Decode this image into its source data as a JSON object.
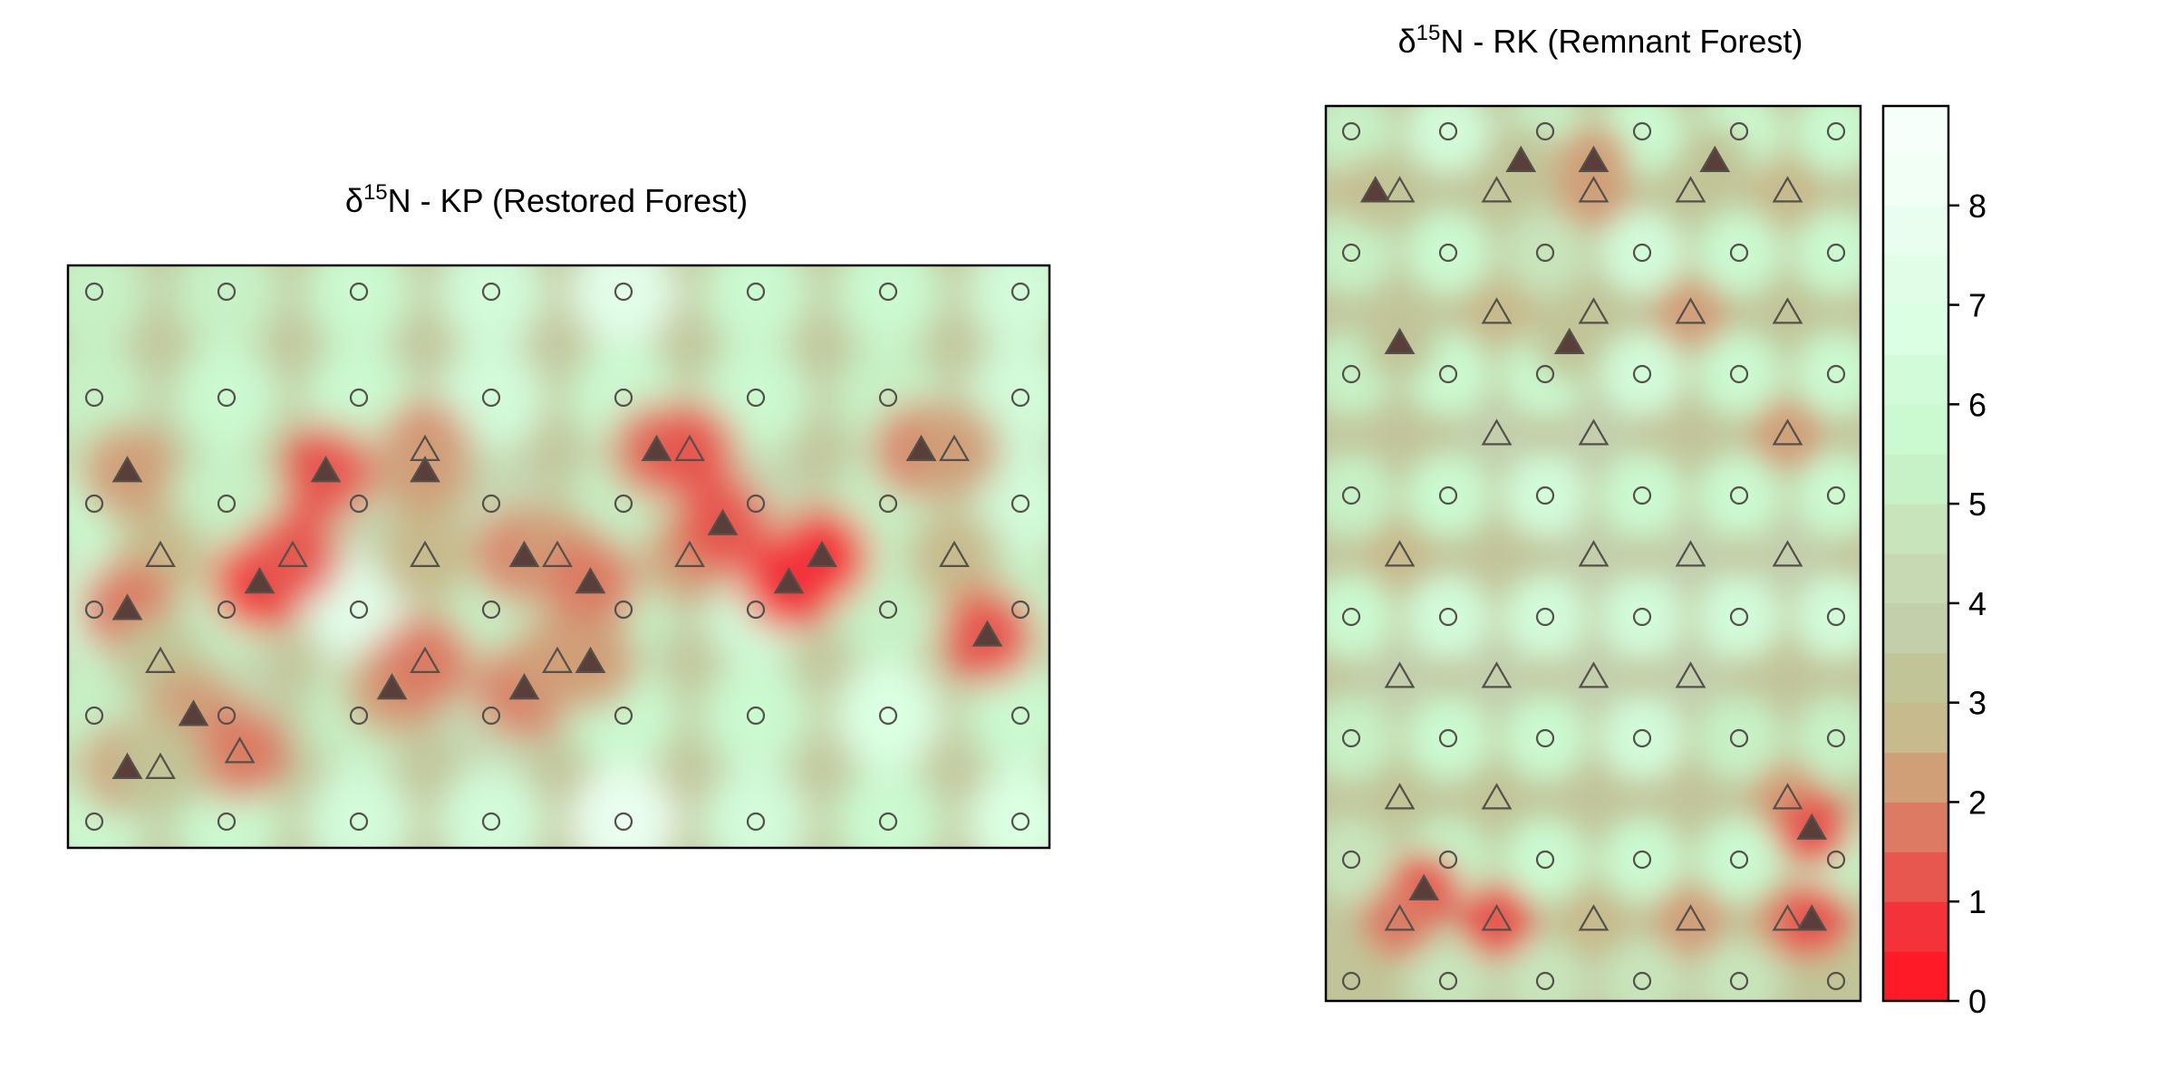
{
  "chart_data": [
    {
      "type": "heatmap",
      "title": {
        "delta": "δ",
        "sup": "15",
        "rest": "N - KP (Restored Forest)"
      },
      "xlabel": "",
      "ylabel": "",
      "grid": false,
      "cols": 8,
      "rows": 6,
      "circles": [
        {
          "x": 0,
          "y": 0,
          "v": 5.1
        },
        {
          "x": 1,
          "y": 0,
          "v": 5.1
        },
        {
          "x": 2,
          "y": 0,
          "v": 5.6
        },
        {
          "x": 3,
          "y": 0,
          "v": 6.2
        },
        {
          "x": 4,
          "y": 0,
          "v": 7.2
        },
        {
          "x": 5,
          "y": 0,
          "v": 5.6
        },
        {
          "x": 6,
          "y": 0,
          "v": 5.6
        },
        {
          "x": 7,
          "y": 0,
          "v": 6.2
        },
        {
          "x": 0,
          "y": 1,
          "v": 5.1
        },
        {
          "x": 1,
          "y": 1,
          "v": 5.6
        },
        {
          "x": 2,
          "y": 1,
          "v": 5.6
        },
        {
          "x": 3,
          "y": 1,
          "v": 6.2
        },
        {
          "x": 4,
          "y": 1,
          "v": 5.6
        },
        {
          "x": 5,
          "y": 1,
          "v": 5.6
        },
        {
          "x": 6,
          "y": 1,
          "v": 5.1
        },
        {
          "x": 7,
          "y": 1,
          "v": 6.2
        },
        {
          "x": 0,
          "y": 2,
          "v": 5.6
        },
        {
          "x": 1,
          "y": 2,
          "v": 5.1
        },
        {
          "x": 2,
          "y": 2,
          "v": 4.2
        },
        {
          "x": 3,
          "y": 2,
          "v": 4.2
        },
        {
          "x": 4,
          "y": 2,
          "v": 5.1
        },
        {
          "x": 5,
          "y": 2,
          "v": 4.4
        },
        {
          "x": 6,
          "y": 2,
          "v": 5.1
        },
        {
          "x": 7,
          "y": 2,
          "v": 6.2
        },
        {
          "x": 0,
          "y": 3,
          "v": 6.2
        },
        {
          "x": 1,
          "y": 3,
          "v": 5.1
        },
        {
          "x": 2,
          "y": 3,
          "v": 7.0
        },
        {
          "x": 3,
          "y": 3,
          "v": 5.1
        },
        {
          "x": 4,
          "y": 3,
          "v": 5.1
        },
        {
          "x": 5,
          "y": 3,
          "v": 6.2
        },
        {
          "x": 6,
          "y": 3,
          "v": 5.1
        },
        {
          "x": 7,
          "y": 3,
          "v": 5.1
        },
        {
          "x": 0,
          "y": 4,
          "v": 5.1
        },
        {
          "x": 1,
          "y": 4,
          "v": 4.4
        },
        {
          "x": 2,
          "y": 4,
          "v": 5.1
        },
        {
          "x": 3,
          "y": 4,
          "v": 4.4
        },
        {
          "x": 4,
          "y": 4,
          "v": 5.6
        },
        {
          "x": 5,
          "y": 4,
          "v": 5.6
        },
        {
          "x": 6,
          "y": 4,
          "v": 6.6
        },
        {
          "x": 7,
          "y": 4,
          "v": 5.6
        },
        {
          "x": 0,
          "y": 5,
          "v": 5.6
        },
        {
          "x": 1,
          "y": 5,
          "v": 5.6
        },
        {
          "x": 2,
          "y": 5,
          "v": 6.2
        },
        {
          "x": 3,
          "y": 5,
          "v": 6.2
        },
        {
          "x": 4,
          "y": 5,
          "v": 7.6
        },
        {
          "x": 5,
          "y": 5,
          "v": 6.2
        },
        {
          "x": 6,
          "y": 5,
          "v": 5.6
        },
        {
          "x": 7,
          "y": 5,
          "v": 6.6
        }
      ],
      "triangles": [
        {
          "x": 0.25,
          "y": 1.7,
          "filled": true,
          "v": 2.4
        },
        {
          "x": 1.75,
          "y": 1.7,
          "filled": true,
          "v": 1.4
        },
        {
          "x": 2.5,
          "y": 1.5,
          "filled": false,
          "v": 1.6
        },
        {
          "x": 2.5,
          "y": 1.7,
          "filled": true,
          "v": 2.4
        },
        {
          "x": 4.25,
          "y": 1.5,
          "filled": true,
          "v": 1.6
        },
        {
          "x": 4.5,
          "y": 1.5,
          "filled": false,
          "v": 1.4
        },
        {
          "x": 6.25,
          "y": 1.5,
          "filled": true,
          "v": 1.6
        },
        {
          "x": 6.5,
          "y": 1.5,
          "filled": false,
          "v": 2.4
        },
        {
          "x": 0.5,
          "y": 2.5,
          "filled": false,
          "v": 2.8
        },
        {
          "x": 1.25,
          "y": 2.75,
          "filled": true,
          "v": 0.9
        },
        {
          "x": 1.5,
          "y": 2.5,
          "filled": false,
          "v": 1.0
        },
        {
          "x": 2.5,
          "y": 2.5,
          "filled": false,
          "v": 2.8
        },
        {
          "x": 3.25,
          "y": 2.5,
          "filled": true,
          "v": 1.6
        },
        {
          "x": 3.5,
          "y": 2.5,
          "filled": false,
          "v": 2.0
        },
        {
          "x": 3.75,
          "y": 2.75,
          "filled": true,
          "v": 1.6
        },
        {
          "x": 4.5,
          "y": 2.5,
          "filled": false,
          "v": 2.0
        },
        {
          "x": 4.75,
          "y": 2.2,
          "filled": true,
          "v": 1.4
        },
        {
          "x": 5.25,
          "y": 2.75,
          "filled": true,
          "v": 0.6
        },
        {
          "x": 5.5,
          "y": 2.5,
          "filled": true,
          "v": 0.8
        },
        {
          "x": 6.5,
          "y": 2.5,
          "filled": false,
          "v": 2.8
        },
        {
          "x": 0.25,
          "y": 3.0,
          "filled": true,
          "v": 1.8
        },
        {
          "x": 6.75,
          "y": 3.25,
          "filled": true,
          "v": 1.4
        },
        {
          "x": 0.5,
          "y": 3.5,
          "filled": false,
          "v": 3.0
        },
        {
          "x": 2.25,
          "y": 3.75,
          "filled": true,
          "v": 2.4
        },
        {
          "x": 2.5,
          "y": 3.5,
          "filled": false,
          "v": 1.8
        },
        {
          "x": 3.25,
          "y": 3.75,
          "filled": true,
          "v": 1.6
        },
        {
          "x": 3.5,
          "y": 3.5,
          "filled": false,
          "v": 2.2
        },
        {
          "x": 3.75,
          "y": 3.5,
          "filled": true,
          "v": 2.2
        },
        {
          "x": 0.75,
          "y": 4.0,
          "filled": true,
          "v": 2.4
        },
        {
          "x": 1.1,
          "y": 4.35,
          "filled": false,
          "v": 1.8
        },
        {
          "x": 0.25,
          "y": 4.5,
          "filled": true,
          "v": 2.4
        },
        {
          "x": 0.5,
          "y": 4.5,
          "filled": false,
          "v": 3.0
        }
      ]
    },
    {
      "type": "heatmap",
      "title": {
        "delta": "δ",
        "sup": "15",
        "rest": "N - RK (Remnant Forest)"
      },
      "xlabel": "",
      "ylabel": "",
      "grid": false,
      "cols": 6,
      "rows": 8,
      "circles": [
        {
          "x": 0,
          "y": 0,
          "v": 5.3
        },
        {
          "x": 1,
          "y": 0,
          "v": 6.3
        },
        {
          "x": 2,
          "y": 0,
          "v": 5.3
        },
        {
          "x": 3,
          "y": 0,
          "v": 5.8
        },
        {
          "x": 4,
          "y": 0,
          "v": 5.8
        },
        {
          "x": 5,
          "y": 0,
          "v": 5.8
        },
        {
          "x": 0,
          "y": 1,
          "v": 5.3
        },
        {
          "x": 1,
          "y": 1,
          "v": 5.8
        },
        {
          "x": 2,
          "y": 1,
          "v": 4.6
        },
        {
          "x": 3,
          "y": 1,
          "v": 6.3
        },
        {
          "x": 4,
          "y": 1,
          "v": 5.8
        },
        {
          "x": 5,
          "y": 1,
          "v": 5.8
        },
        {
          "x": 0,
          "y": 2,
          "v": 5.3
        },
        {
          "x": 1,
          "y": 2,
          "v": 5.8
        },
        {
          "x": 2,
          "y": 2,
          "v": 5.8
        },
        {
          "x": 3,
          "y": 2,
          "v": 6.0
        },
        {
          "x": 4,
          "y": 2,
          "v": 5.8
        },
        {
          "x": 5,
          "y": 2,
          "v": 5.8
        },
        {
          "x": 0,
          "y": 3,
          "v": 5.3
        },
        {
          "x": 1,
          "y": 3,
          "v": 5.8
        },
        {
          "x": 2,
          "y": 3,
          "v": 6.3
        },
        {
          "x": 3,
          "y": 3,
          "v": 5.8
        },
        {
          "x": 4,
          "y": 3,
          "v": 5.8
        },
        {
          "x": 5,
          "y": 3,
          "v": 5.8
        },
        {
          "x": 0,
          "y": 4,
          "v": 5.8
        },
        {
          "x": 1,
          "y": 4,
          "v": 6.3
        },
        {
          "x": 2,
          "y": 4,
          "v": 6.3
        },
        {
          "x": 3,
          "y": 4,
          "v": 6.3
        },
        {
          "x": 4,
          "y": 4,
          "v": 6.3
        },
        {
          "x": 5,
          "y": 4,
          "v": 6.3
        },
        {
          "x": 0,
          "y": 5,
          "v": 5.3
        },
        {
          "x": 1,
          "y": 5,
          "v": 5.8
        },
        {
          "x": 2,
          "y": 5,
          "v": 5.8
        },
        {
          "x": 3,
          "y": 5,
          "v": 6.0
        },
        {
          "x": 4,
          "y": 5,
          "v": 5.3
        },
        {
          "x": 5,
          "y": 5,
          "v": 5.3
        },
        {
          "x": 0,
          "y": 6,
          "v": 4.6
        },
        {
          "x": 1,
          "y": 6,
          "v": 5.3
        },
        {
          "x": 2,
          "y": 6,
          "v": 5.8
        },
        {
          "x": 3,
          "y": 6,
          "v": 5.8
        },
        {
          "x": 4,
          "y": 6,
          "v": 5.8
        },
        {
          "x": 5,
          "y": 6,
          "v": 5.3
        },
        {
          "x": 0,
          "y": 7,
          "v": 3.4
        },
        {
          "x": 1,
          "y": 7,
          "v": 4.8
        },
        {
          "x": 2,
          "y": 7,
          "v": 4.8
        },
        {
          "x": 3,
          "y": 7,
          "v": 4.8
        },
        {
          "x": 4,
          "y": 7,
          "v": 4.8
        },
        {
          "x": 5,
          "y": 7,
          "v": 3.4
        }
      ],
      "triangles": [
        {
          "x": 0.25,
          "y": 0.5,
          "filled": true,
          "v": 2.6
        },
        {
          "x": 0.5,
          "y": 0.5,
          "filled": false,
          "v": 3.0
        },
        {
          "x": 1.5,
          "y": 0.5,
          "filled": false,
          "v": 3.2
        },
        {
          "x": 1.75,
          "y": 0.25,
          "filled": true,
          "v": 3.0
        },
        {
          "x": 2.5,
          "y": 0.25,
          "filled": true,
          "v": 2.4
        },
        {
          "x": 2.5,
          "y": 0.5,
          "filled": false,
          "v": 2.4
        },
        {
          "x": 3.5,
          "y": 0.5,
          "filled": false,
          "v": 3.2
        },
        {
          "x": 3.75,
          "y": 0.25,
          "filled": true,
          "v": 3.0
        },
        {
          "x": 4.5,
          "y": 0.5,
          "filled": false,
          "v": 2.8
        },
        {
          "x": 0.5,
          "y": 1.75,
          "filled": true,
          "v": 3.0
        },
        {
          "x": 1.5,
          "y": 1.5,
          "filled": false,
          "v": 2.8
        },
        {
          "x": 2.25,
          "y": 1.75,
          "filled": true,
          "v": 3.0
        },
        {
          "x": 2.5,
          "y": 1.5,
          "filled": false,
          "v": 3.2
        },
        {
          "x": 3.5,
          "y": 1.5,
          "filled": false,
          "v": 2.2
        },
        {
          "x": 4.5,
          "y": 1.5,
          "filled": false,
          "v": 3.2
        },
        {
          "x": 1.5,
          "y": 2.5,
          "filled": false,
          "v": 3.8
        },
        {
          "x": 2.5,
          "y": 2.5,
          "filled": false,
          "v": 3.8
        },
        {
          "x": 4.5,
          "y": 2.5,
          "filled": false,
          "v": 2.4
        },
        {
          "x": 0.5,
          "y": 3.5,
          "filled": false,
          "v": 2.8
        },
        {
          "x": 2.5,
          "y": 3.5,
          "filled": false,
          "v": 3.6
        },
        {
          "x": 3.5,
          "y": 3.5,
          "filled": false,
          "v": 3.8
        },
        {
          "x": 4.5,
          "y": 3.5,
          "filled": false,
          "v": 3.6
        },
        {
          "x": 0.5,
          "y": 4.5,
          "filled": false,
          "v": 3.8
        },
        {
          "x": 1.5,
          "y": 4.5,
          "filled": false,
          "v": 3.6
        },
        {
          "x": 2.5,
          "y": 4.5,
          "filled": false,
          "v": 3.6
        },
        {
          "x": 3.5,
          "y": 4.5,
          "filled": false,
          "v": 3.8
        },
        {
          "x": 0.5,
          "y": 5.5,
          "filled": false,
          "v": 3.2
        },
        {
          "x": 1.5,
          "y": 5.5,
          "filled": false,
          "v": 3.2
        },
        {
          "x": 4.5,
          "y": 5.5,
          "filled": false,
          "v": 2.4
        },
        {
          "x": 4.75,
          "y": 5.75,
          "filled": true,
          "v": 1.2
        },
        {
          "x": 0.75,
          "y": 6.25,
          "filled": true,
          "v": 1.0
        },
        {
          "x": 0.5,
          "y": 6.5,
          "filled": false,
          "v": 1.6
        },
        {
          "x": 1.5,
          "y": 6.5,
          "filled": false,
          "v": 1.2
        },
        {
          "x": 2.5,
          "y": 6.5,
          "filled": false,
          "v": 2.6
        },
        {
          "x": 3.5,
          "y": 6.5,
          "filled": false,
          "v": 2.2
        },
        {
          "x": 4.5,
          "y": 6.5,
          "filled": false,
          "v": 2.0
        },
        {
          "x": 4.75,
          "y": 6.5,
          "filled": true,
          "v": 1.0
        }
      ]
    }
  ],
  "colorbar": {
    "ticks": [
      0,
      1,
      2,
      3,
      4,
      5,
      6,
      7,
      8
    ],
    "range": [
      0,
      9
    ],
    "colors": [
      "#fe1a27",
      "#f3323a",
      "#e7574f",
      "#dc7a64",
      "#d09f78",
      "#c7ba8c",
      "#c1c497",
      "#c3ceab",
      "#c6d9b3",
      "#c8e4bb",
      "#c7f1c6",
      "#cbf9d0",
      "#d2fbd9",
      "#daffe2",
      "#e1fde8",
      "#e9feef",
      "#f1fff4",
      "#f6fffa"
    ]
  },
  "style": {
    "base_color": "#c2c49a",
    "triangle_filled": "#5a3e3a",
    "marker_stroke": "#54504a"
  }
}
